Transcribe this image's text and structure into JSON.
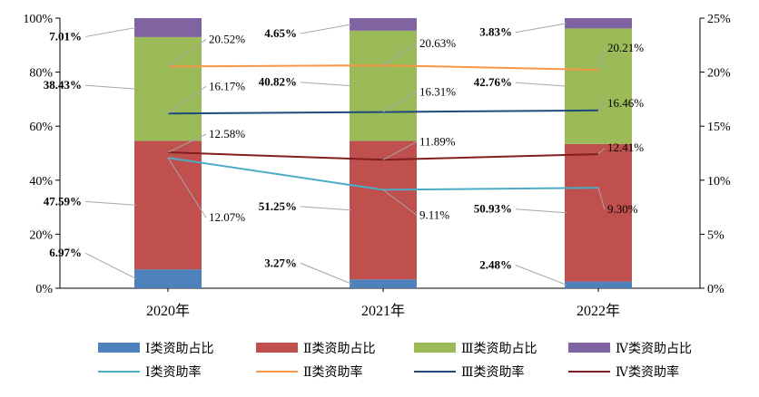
{
  "chart_data": {
    "type": "bar",
    "categories": [
      "2020年",
      "2021年",
      "2022年"
    ],
    "left_axis": {
      "ticks": [
        "0%",
        "20%",
        "40%",
        "60%",
        "80%",
        "100%"
      ],
      "ylim": [
        0,
        100
      ]
    },
    "right_axis": {
      "ticks": [
        "0%",
        "5%",
        "10%",
        "15%",
        "20%",
        "25%"
      ],
      "ylim": [
        0,
        25
      ]
    },
    "stacked_series": [
      {
        "name": "Ⅰ类资助占比",
        "color": "#4F81BD",
        "values": [
          6.97,
          3.27,
          2.48
        ],
        "labels": [
          "6.97%",
          "3.27%",
          "2.48%"
        ]
      },
      {
        "name": "Ⅱ类资助占比",
        "color": "#C0504D",
        "values": [
          47.59,
          51.25,
          50.93
        ],
        "labels": [
          "47.59%",
          "51.25%",
          "50.93%"
        ]
      },
      {
        "name": "Ⅲ类资助占比",
        "color": "#9BBB59",
        "values": [
          38.43,
          40.82,
          42.76
        ],
        "labels": [
          "38.43%",
          "40.82%",
          "42.76%"
        ]
      },
      {
        "name": "Ⅳ类资助占比",
        "color": "#8064A2",
        "values": [
          7.01,
          4.65,
          3.83
        ],
        "labels": [
          "7.01%",
          "4.65%",
          "3.83%"
        ]
      }
    ],
    "line_series": [
      {
        "name": "Ⅰ类资助率",
        "color": "#4BACC6",
        "values": [
          12.07,
          9.11,
          9.3
        ],
        "labels": [
          "12.07%",
          "9.11%",
          "9.30%"
        ]
      },
      {
        "name": "Ⅱ类资助率",
        "color": "#F79646",
        "values": [
          20.52,
          20.63,
          20.21
        ],
        "labels": [
          "20.52%",
          "20.63%",
          "20.21%"
        ]
      },
      {
        "name": "Ⅲ类资助率",
        "color": "#1F497D",
        "values": [
          16.17,
          16.31,
          16.46
        ],
        "labels": [
          "16.17%",
          "16.31%",
          "16.46%"
        ]
      },
      {
        "name": "Ⅳ类资助率",
        "color": "#7F1F1F",
        "values": [
          12.58,
          11.89,
          12.41
        ],
        "labels": [
          "12.58%",
          "11.89%",
          "12.41%"
        ]
      }
    ]
  }
}
